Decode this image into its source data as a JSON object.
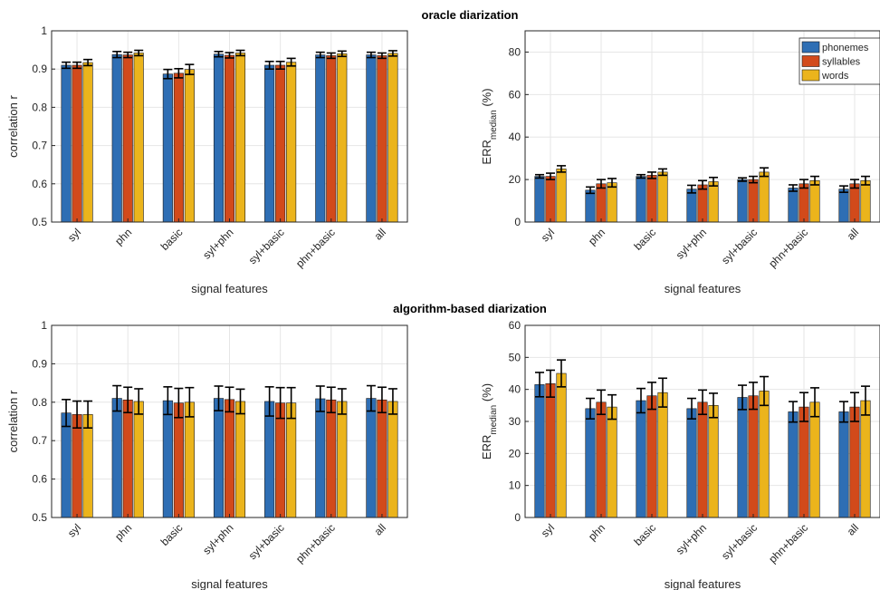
{
  "sections": [
    {
      "title": "oracle diarization"
    },
    {
      "title": "algorithm-based diarization"
    }
  ],
  "colors": {
    "phonemes": "#2E6EB4",
    "syllables": "#D24A1B",
    "words": "#EBB41C",
    "grid": "#e6e6e6",
    "axis": "#262626"
  },
  "legend": {
    "items": [
      "phonemes",
      "syllables",
      "words"
    ]
  },
  "chart_data": [
    {
      "id": "oracle-corr",
      "type": "bar",
      "xlabel": "signal features",
      "ylabel": "correlation r",
      "ylabel_sub": "",
      "ylabel_suffix": "",
      "ylim": [
        0.5,
        1.0
      ],
      "yticks": [
        0.5,
        0.6,
        0.7,
        0.8,
        0.9,
        1
      ],
      "ytick_labels": [
        "0.5",
        "0.6",
        "0.7",
        "0.8",
        "0.9",
        "1"
      ],
      "categories": [
        "syl",
        "phn",
        "basic",
        "syl+phn",
        "syl+basic",
        "phn+basic",
        "all"
      ],
      "series": [
        {
          "name": "phonemes",
          "values": [
            0.91,
            0.938,
            0.887,
            0.939,
            0.91,
            0.937,
            0.937
          ],
          "err": [
            0.008,
            0.008,
            0.012,
            0.007,
            0.01,
            0.007,
            0.007
          ]
        },
        {
          "name": "syllables",
          "values": [
            0.91,
            0.937,
            0.889,
            0.936,
            0.91,
            0.935,
            0.935
          ],
          "err": [
            0.008,
            0.007,
            0.012,
            0.007,
            0.01,
            0.007,
            0.007
          ]
        },
        {
          "name": "words",
          "values": [
            0.917,
            0.942,
            0.899,
            0.942,
            0.918,
            0.94,
            0.941
          ],
          "err": [
            0.008,
            0.007,
            0.013,
            0.007,
            0.01,
            0.007,
            0.007
          ]
        }
      ],
      "legend": false
    },
    {
      "id": "oracle-err",
      "type": "bar",
      "xlabel": "signal features",
      "ylabel": "ERR",
      "ylabel_sub": "median",
      "ylabel_suffix": " (%)",
      "ylim": [
        0,
        90
      ],
      "yticks": [
        0,
        20,
        40,
        60,
        80
      ],
      "ytick_labels": [
        "0",
        "20",
        "40",
        "60",
        "80"
      ],
      "categories": [
        "syl",
        "phn",
        "basic",
        "syl+phn",
        "syl+basic",
        "phn+basic",
        "all"
      ],
      "series": [
        {
          "name": "phonemes",
          "values": [
            21.5,
            15.0,
            21.5,
            15.5,
            20.0,
            16.0,
            15.5
          ],
          "err": [
            0.8,
            1.5,
            0.8,
            1.8,
            0.8,
            1.5,
            1.5
          ]
        },
        {
          "name": "syllables",
          "values": [
            21.5,
            18.0,
            22.0,
            17.5,
            20.0,
            18.0,
            18.0
          ],
          "err": [
            1.5,
            2.0,
            1.5,
            2.0,
            1.5,
            2.0,
            2.0
          ]
        },
        {
          "name": "words",
          "values": [
            25.0,
            18.5,
            23.5,
            19.0,
            23.5,
            19.5,
            19.5
          ],
          "err": [
            1.5,
            2.0,
            1.5,
            2.0,
            2.0,
            2.0,
            2.0
          ]
        }
      ],
      "legend": true,
      "legend_position": "top-right"
    },
    {
      "id": "algo-corr",
      "type": "bar",
      "xlabel": "signal features",
      "ylabel": "correlation r",
      "ylabel_sub": "",
      "ylabel_suffix": "",
      "ylim": [
        0.5,
        1.0
      ],
      "yticks": [
        0.5,
        0.6,
        0.7,
        0.8,
        0.9,
        1
      ],
      "ytick_labels": [
        "0.5",
        "0.6",
        "0.7",
        "0.8",
        "0.9",
        "1"
      ],
      "categories": [
        "syl",
        "phn",
        "basic",
        "syl+phn",
        "syl+basic",
        "phn+basic",
        "all"
      ],
      "series": [
        {
          "name": "phonemes",
          "values": [
            0.772,
            0.81,
            0.804,
            0.81,
            0.802,
            0.809,
            0.81
          ],
          "err": [
            0.035,
            0.033,
            0.036,
            0.032,
            0.038,
            0.033,
            0.033
          ]
        },
        {
          "name": "syllables",
          "values": [
            0.768,
            0.806,
            0.798,
            0.807,
            0.798,
            0.806,
            0.806
          ],
          "err": [
            0.035,
            0.033,
            0.038,
            0.032,
            0.04,
            0.033,
            0.033
          ]
        },
        {
          "name": "words",
          "values": [
            0.768,
            0.802,
            0.8,
            0.802,
            0.798,
            0.802,
            0.802
          ],
          "err": [
            0.035,
            0.033,
            0.038,
            0.032,
            0.04,
            0.033,
            0.033
          ]
        }
      ],
      "legend": false
    },
    {
      "id": "algo-err",
      "type": "bar",
      "xlabel": "signal features",
      "ylabel": "ERR",
      "ylabel_sub": "median",
      "ylabel_suffix": " (%)",
      "ylim": [
        0,
        60
      ],
      "yticks": [
        0,
        10,
        20,
        30,
        40,
        50,
        60
      ],
      "ytick_labels": [
        "0",
        "10",
        "20",
        "30",
        "40",
        "50",
        "60"
      ],
      "categories": [
        "syl",
        "phn",
        "basic",
        "syl+phn",
        "syl+basic",
        "phn+basic",
        "all"
      ],
      "series": [
        {
          "name": "phonemes",
          "values": [
            41.5,
            34.0,
            36.5,
            34.0,
            37.5,
            33.0,
            33.0
          ],
          "err": [
            3.8,
            3.2,
            3.8,
            3.2,
            3.8,
            3.2,
            3.2
          ]
        },
        {
          "name": "syllables",
          "values": [
            41.8,
            36.0,
            38.0,
            36.0,
            38.0,
            34.5,
            34.5
          ],
          "err": [
            4.2,
            3.8,
            4.2,
            3.8,
            4.2,
            4.5,
            4.5
          ]
        },
        {
          "name": "words",
          "values": [
            45.0,
            34.5,
            39.0,
            35.0,
            39.5,
            36.0,
            36.5
          ],
          "err": [
            4.2,
            3.8,
            4.5,
            3.8,
            4.5,
            4.5,
            4.5
          ]
        }
      ],
      "legend": false
    }
  ]
}
